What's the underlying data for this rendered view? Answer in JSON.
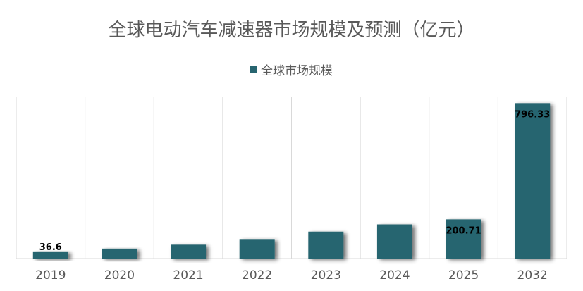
{
  "chart_data": {
    "type": "bar",
    "title": "全球电动汽车减速器市场规模及预测（亿元）",
    "categories": [
      "2019",
      "2020",
      "2021",
      "2022",
      "2023",
      "2024",
      "2025",
      "2032"
    ],
    "series": [
      {
        "name": "全球市场规模",
        "values": [
          36.6,
          51,
          71,
          100,
          138,
          175,
          200.71,
          796.33
        ],
        "color": "#276570"
      }
    ],
    "data_labels": [
      "36.6",
      "",
      "",
      "",
      "",
      "",
      "200.71",
      "796.33"
    ],
    "xlabel": "",
    "ylabel": "",
    "ylim": [
      0,
      830
    ],
    "grid": "vertical",
    "legend": "top-center"
  }
}
